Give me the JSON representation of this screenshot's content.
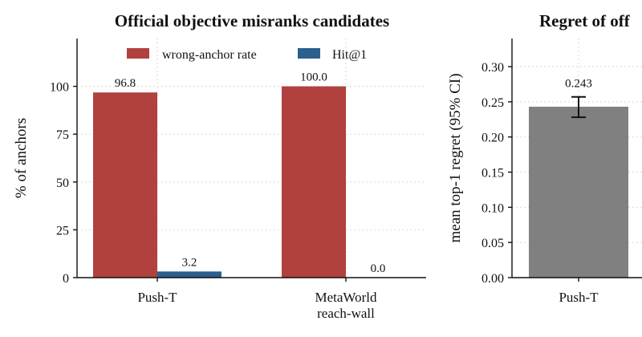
{
  "chart_data": [
    {
      "type": "bar",
      "title": "Official objective misranks candidates",
      "xlabel": "",
      "ylabel": "% of anchors",
      "ylim": [
        0,
        125
      ],
      "yticks": [
        0,
        25,
        50,
        75,
        100
      ],
      "grid": true,
      "legend": "top-center",
      "categories": [
        "Push-T",
        "MetaWorld\nreach-wall"
      ],
      "series": [
        {
          "name": "wrong-anchor rate",
          "color": "#b0413e",
          "values": [
            96.8,
            100.0
          ],
          "labels": [
            "96.8",
            "100.0"
          ]
        },
        {
          "name": "Hit@1",
          "color": "#2a5f8e",
          "values": [
            3.2,
            0.0
          ],
          "labels": [
            "3.2",
            "0.0"
          ]
        }
      ]
    },
    {
      "type": "bar",
      "title": "Regret of off",
      "xlabel": "",
      "ylabel": "mean top-1 regret (95% CI)",
      "ylim": [
        0,
        0.34
      ],
      "yticks": [
        "0.00",
        "0.05",
        "0.10",
        "0.15",
        "0.20",
        "0.25",
        "0.30"
      ],
      "grid": true,
      "categories": [
        "Push-T"
      ],
      "values": [
        0.243
      ],
      "labels": [
        "0.243"
      ],
      "ci": [
        [
          0.228,
          0.257
        ]
      ],
      "color": "#808080"
    }
  ]
}
